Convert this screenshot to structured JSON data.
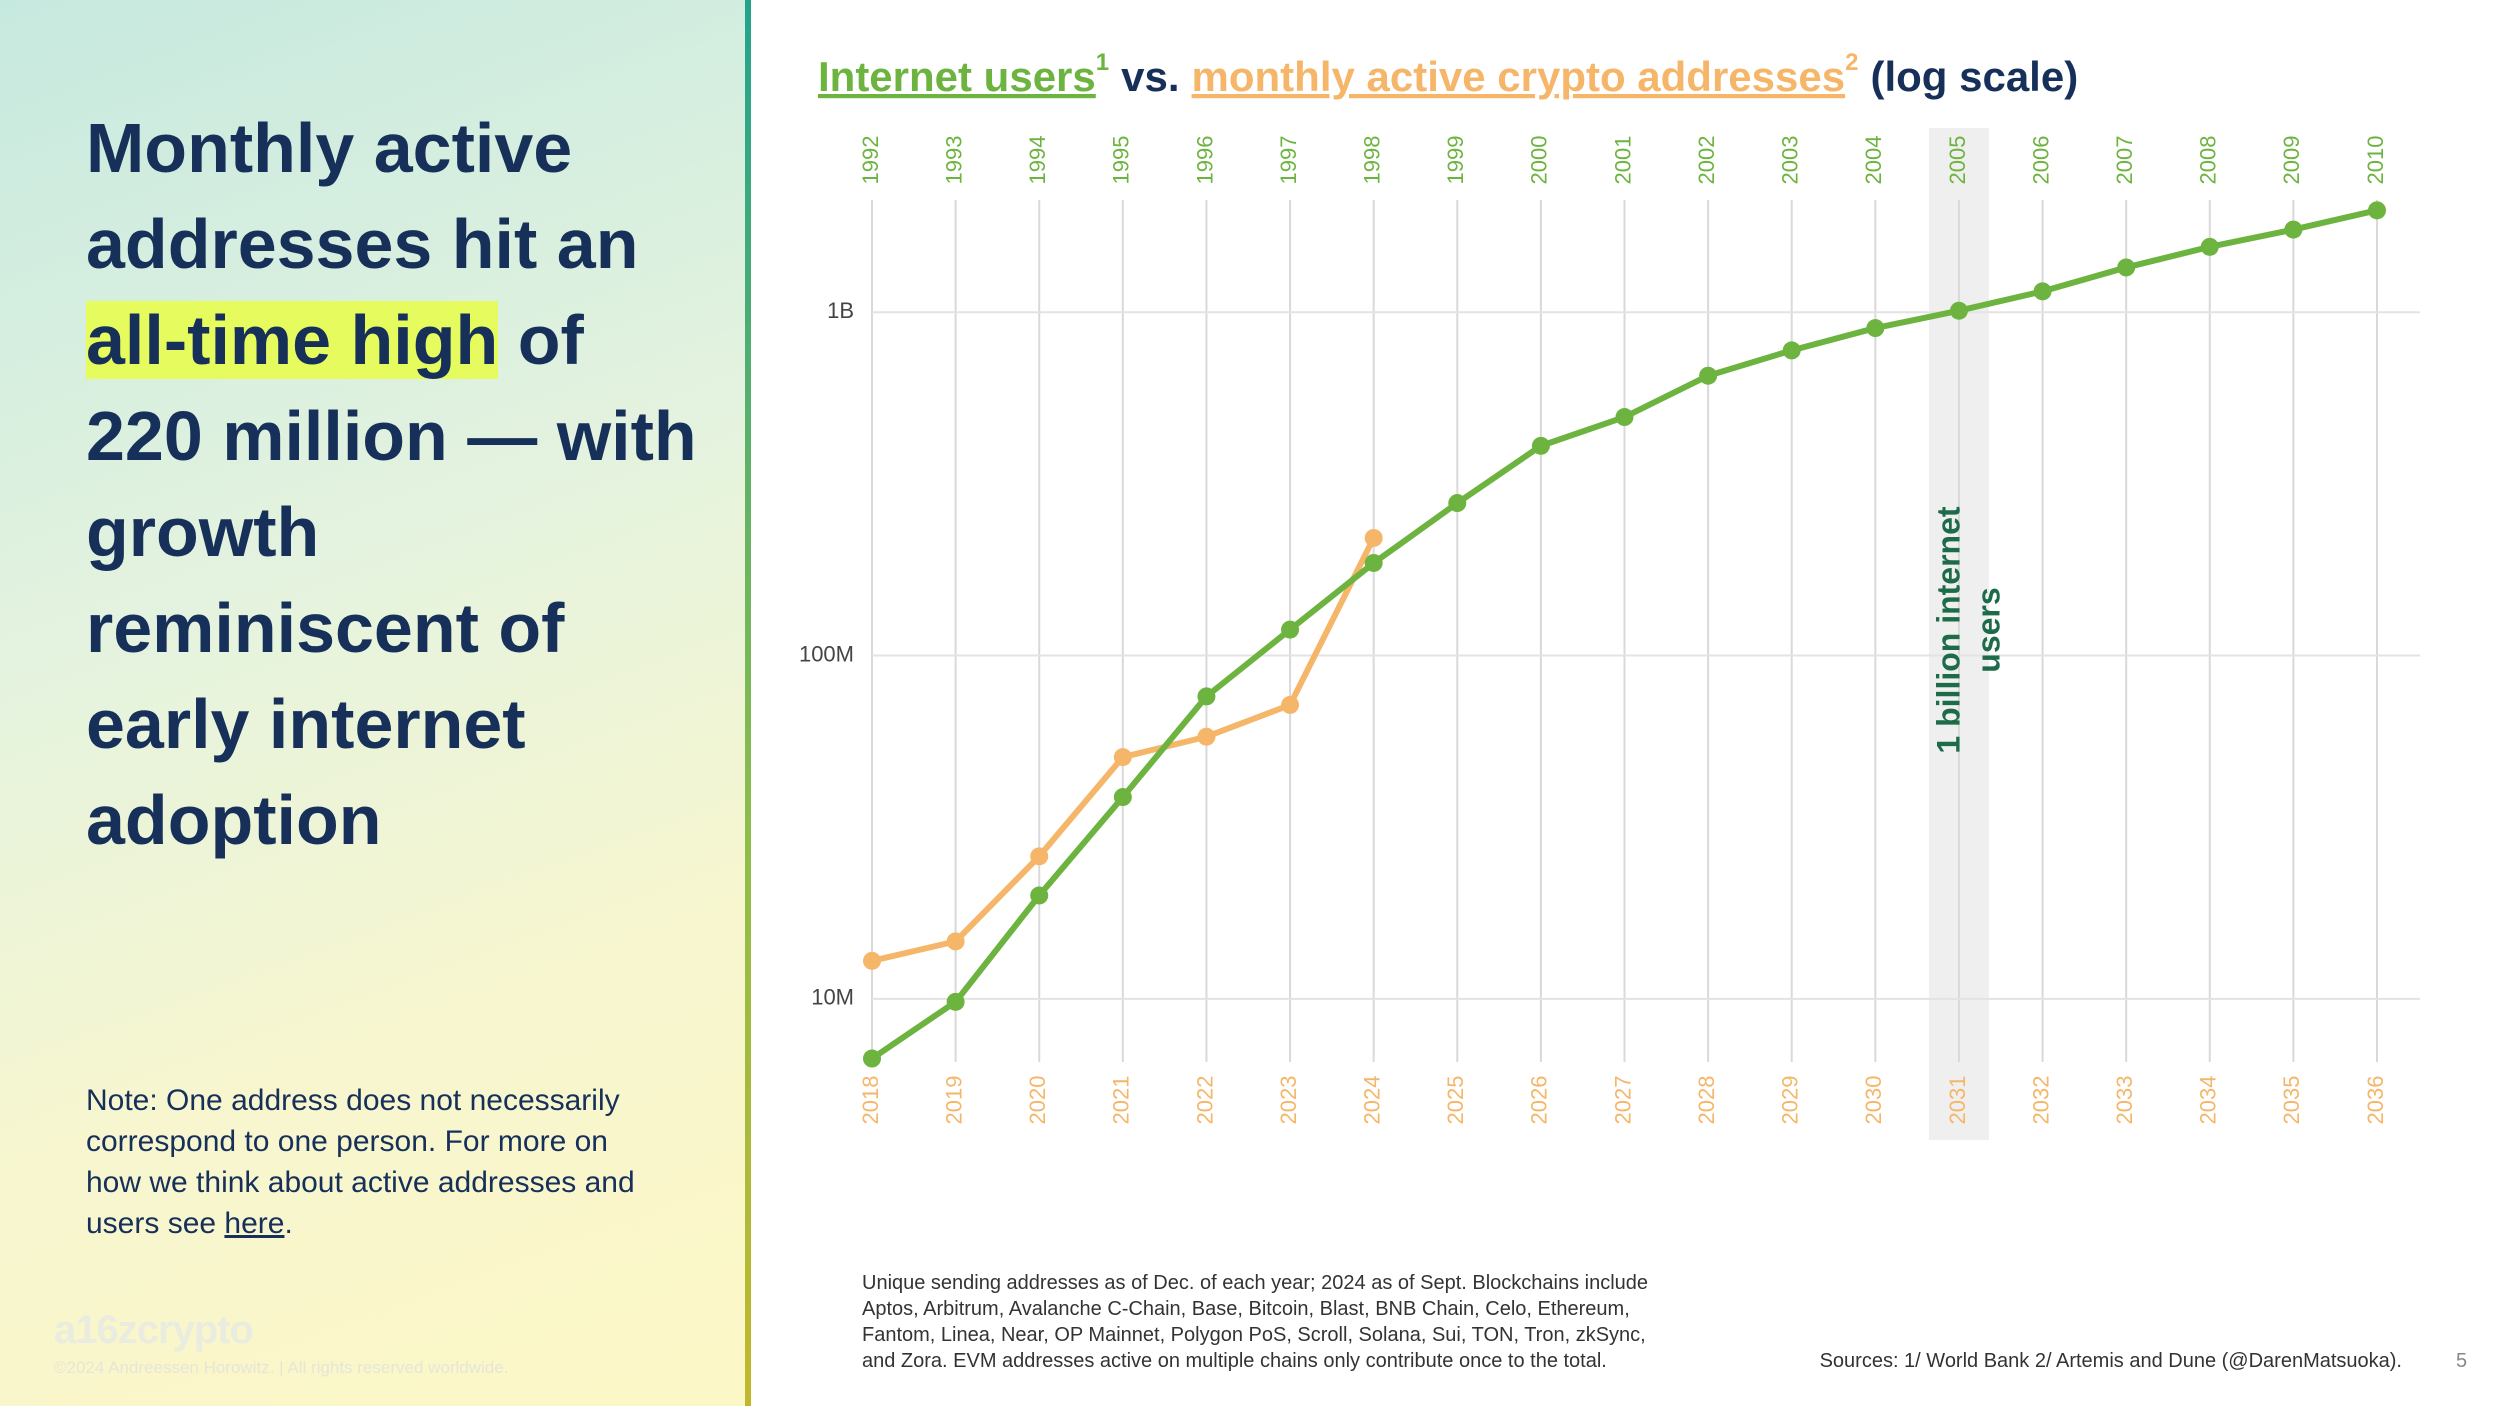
{
  "slide": {
    "headline_before": "Monthly active addresses hit an",
    "headline_highlight": "all-time high",
    "headline_after": "of 220 million — with growth reminiscent of early internet adoption",
    "note_text": "Note: One address does not necessarily correspond to one person. For more on how we think about active addresses and users see",
    "note_link": "here",
    "note_end": ".",
    "footnote": "Unique sending addresses as of Dec. of each year; 2024 as of Sept. Blockchains include Aptos, Arbitrum, Avalanche C-Chain, Base, Bitcoin, Blast, BNB Chain, Celo, Ethereum, Fantom, Linea, Near, OP Mainnet, Polygon PoS, Scroll, Solana, Sui, TON, Tron, zkSync, and Zora. EVM addresses active on multiple chains only contribute once to the total.",
    "sources": "Sources: 1/ World Bank 2/ Artemis and Dune (@DarenMatsuoka).",
    "page_number": "5",
    "logo": "a16zcrypto",
    "copyright": "©2024 Andreessen Horowitz. |  All rights reserved worldwide."
  },
  "chart_data": {
    "type": "line",
    "title_connector": "vs.",
    "title_suffix": "(log scale)",
    "categories": [
      "1992",
      "1993",
      "1994",
      "1995",
      "1996",
      "1997",
      "1998",
      "1999",
      "2000",
      "2001",
      "2002",
      "2003",
      "2004",
      "2005",
      "2006",
      "2007",
      "2008",
      "2009",
      "2010"
    ],
    "categories2": [
      "2018",
      "2019",
      "2020",
      "2021",
      "2022",
      "2023",
      "2024",
      "2025",
      "2026",
      "2027",
      "2028",
      "2029",
      "2030",
      "2031",
      "2032",
      "2033",
      "2034",
      "2035",
      "2036"
    ],
    "series": [
      {
        "name": "Internet users",
        "footnote": "1",
        "color": "#6db33f",
        "values": [
          6700000,
          9800000,
          20000000,
          38700000,
          76000000,
          119000000,
          186000000,
          278000000,
          408000000,
          495000000,
          653000000,
          774000000,
          899000000,
          1010000000,
          1150000000,
          1350000000,
          1550000000,
          1740000000,
          1980000000
        ]
      },
      {
        "name": "monthly active crypto addresses",
        "footnote": "2",
        "color": "#f5b66a",
        "values": [
          12900000,
          14700000,
          26000000,
          50600000,
          58000000,
          71800000,
          220000000,
          null,
          null,
          null,
          null,
          null,
          null,
          null,
          null,
          null,
          null,
          null,
          null
        ]
      }
    ],
    "log_scale": true,
    "grid": true,
    "ylim": [
      6000000,
      2300000000
    ],
    "yticks": [
      {
        "value": 10000000,
        "label": "10M"
      },
      {
        "value": 100000000,
        "label": "100M"
      },
      {
        "value": 1000000000,
        "label": "1B"
      }
    ],
    "annotation": {
      "lines": [
        "1 billion internet",
        "users"
      ],
      "x": "2005",
      "color": "#1e6b4a"
    }
  }
}
